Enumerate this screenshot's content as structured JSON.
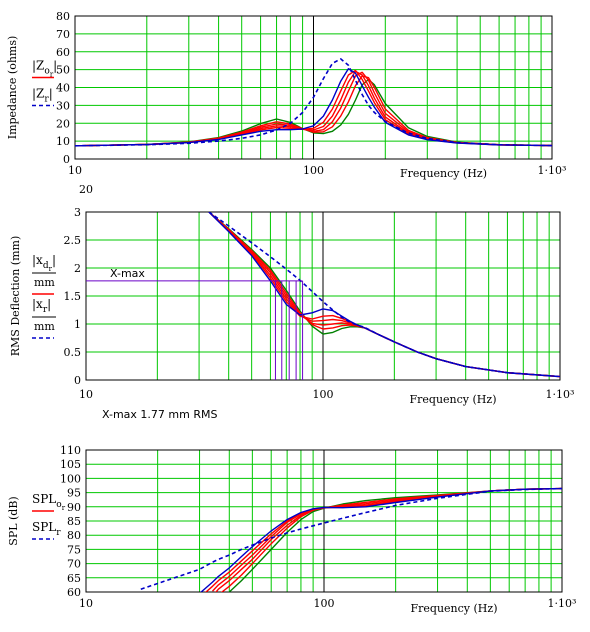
{
  "colors": {
    "grid": "#00c800",
    "frame": "#000000",
    "series_red": "#ff0000",
    "series_green": "#008000",
    "series_blue": "#0000c8",
    "marker": "#6a00c8"
  },
  "chart_data": [
    {
      "type": "line",
      "xscale": "log",
      "xlim": [
        10,
        1000
      ],
      "ylim": [
        0,
        80
      ],
      "grid": true,
      "xlabel": "Frequency (Hz)",
      "ylabel": "Impedance (ohms)",
      "x_ticks": [
        "10",
        "100",
        "1·10³"
      ],
      "y_ticks": [
        "0",
        "10",
        "20",
        "30",
        "40",
        "50",
        "60",
        "70",
        "80"
      ],
      "legend": [
        {
          "text": "|Z",
          "sub": "o",
          "sub2": "r",
          "tail": "|",
          "style": "solid-red"
        },
        {
          "text": "|Z",
          "sub": "r",
          "tail": "|",
          "style": "dashed-blue"
        }
      ],
      "x": [
        10,
        20,
        30,
        40,
        50,
        60,
        70,
        80,
        90,
        100,
        110,
        120,
        130,
        140,
        150,
        160,
        170,
        180,
        200,
        250,
        300,
        400,
        600,
        1000
      ],
      "series": [
        {
          "color": "green",
          "style": "solid",
          "values": [
            7.4,
            8.1,
            9.5,
            12.0,
            15.6,
            19.8,
            22.4,
            20.5,
            17.0,
            14.6,
            14.2,
            15.5,
            19.0,
            25.0,
            33.0,
            41.5,
            44.5,
            41.5,
            31.0,
            17.5,
            12.6,
            9.4,
            8.0,
            7.5
          ]
        },
        {
          "color": "red",
          "style": "solid",
          "values": [
            7.4,
            8.1,
            9.4,
            11.7,
            15.0,
            18.6,
            20.8,
            19.6,
            17.0,
            15.0,
            15.2,
            18.0,
            24.0,
            32.0,
            41.0,
            46.5,
            45.5,
            40.0,
            28.0,
            16.0,
            12.0,
            9.3,
            8.0,
            7.5
          ]
        },
        {
          "color": "red",
          "style": "solid",
          "values": [
            7.4,
            8.1,
            9.4,
            11.5,
            14.6,
            17.8,
            19.6,
            18.8,
            16.8,
            15.5,
            16.4,
            20.8,
            28.5,
            38.0,
            46.5,
            48.5,
            44.0,
            37.0,
            25.5,
            15.2,
            11.6,
            9.2,
            8.0,
            7.5
          ]
        },
        {
          "color": "red",
          "style": "solid",
          "values": [
            7.4,
            8.1,
            9.3,
            11.3,
            14.2,
            17.0,
            18.6,
            18.0,
            16.6,
            16.2,
            18.2,
            24.0,
            33.0,
            43.0,
            49.0,
            47.0,
            41.0,
            34.0,
            23.5,
            14.5,
            11.3,
            9.1,
            7.9,
            7.5
          ]
        },
        {
          "color": "red",
          "style": "solid",
          "values": [
            7.4,
            8.1,
            9.2,
            11.1,
            13.9,
            16.3,
            17.6,
            17.2,
            16.6,
            17.2,
            20.6,
            28.0,
            38.0,
            47.0,
            49.5,
            44.5,
            38.0,
            31.5,
            22.0,
            14.0,
            11.0,
            9.0,
            7.9,
            7.5
          ]
        },
        {
          "color": "blue",
          "style": "solid",
          "values": [
            7.4,
            8.1,
            9.2,
            10.9,
            13.5,
            15.5,
            16.4,
            16.4,
            16.8,
            18.6,
            24.0,
            33.0,
            43.5,
            50.5,
            48.0,
            41.0,
            34.5,
            29.0,
            20.5,
            13.5,
            10.8,
            8.9,
            7.9,
            7.5
          ]
        },
        {
          "color": "blue",
          "style": "dashed",
          "values": [
            7.4,
            8.0,
            8.8,
            10.0,
            11.6,
            13.5,
            16.2,
            20.0,
            26.0,
            34.5,
            45.0,
            53.5,
            56.0,
            52.5,
            44.0,
            36.0,
            30.0,
            26.0,
            21.0,
            14.5,
            11.5,
            9.2,
            8.0,
            7.5
          ]
        }
      ]
    },
    {
      "type": "line",
      "xscale": "log",
      "xlim": [
        10,
        1000
      ],
      "ylim": [
        0,
        3
      ],
      "grid": true,
      "xlabel": "Frequency (Hz)",
      "ylabel": "RMS Deflection (mm)",
      "x_ticks": [
        "10",
        "100",
        "1·10³"
      ],
      "y_ticks": [
        "0",
        "0.5",
        "1",
        "1.5",
        "2",
        "2.5",
        "3"
      ],
      "top_label": "20",
      "legend": [
        {
          "text": "|x",
          "sub": "d",
          "sub2": "r",
          "tail": "|",
          "denominator": "mm",
          "style": "solid-red"
        },
        {
          "text": "|x",
          "sub": "r",
          "tail": "|",
          "denominator": "mm",
          "style": "dashed-blue"
        }
      ],
      "annotations": {
        "xmax_label": "X-max",
        "xmax_value": 1.77,
        "xmax_crossings": [
          63,
          67,
          72,
          77,
          82
        ],
        "caption": "X-max 1.77 mm  RMS"
      },
      "x": [
        33,
        40,
        50,
        60,
        70,
        80,
        90,
        100,
        110,
        120,
        130,
        140,
        150,
        170,
        200,
        250,
        300,
        400,
        600,
        1000
      ],
      "series": [
        {
          "color": "green",
          "style": "solid",
          "values": [
            3.0,
            2.7,
            2.33,
            2.0,
            1.6,
            1.23,
            0.96,
            0.82,
            0.85,
            0.92,
            0.95,
            0.95,
            0.93,
            0.82,
            0.68,
            0.5,
            0.38,
            0.24,
            0.13,
            0.06
          ]
        },
        {
          "color": "red",
          "style": "solid",
          "values": [
            3.0,
            2.69,
            2.31,
            1.96,
            1.55,
            1.2,
            0.99,
            0.91,
            0.93,
            0.97,
            0.98,
            0.96,
            0.93,
            0.82,
            0.68,
            0.5,
            0.38,
            0.24,
            0.13,
            0.06
          ]
        },
        {
          "color": "red",
          "style": "solid",
          "values": [
            3.0,
            2.68,
            2.29,
            1.92,
            1.5,
            1.17,
            1.01,
            0.98,
            1.0,
            1.02,
            1.0,
            0.97,
            0.93,
            0.82,
            0.68,
            0.5,
            0.38,
            0.24,
            0.13,
            0.06
          ]
        },
        {
          "color": "red",
          "style": "solid",
          "values": [
            3.0,
            2.67,
            2.27,
            1.87,
            1.45,
            1.15,
            1.05,
            1.06,
            1.08,
            1.06,
            1.02,
            0.98,
            0.93,
            0.82,
            0.68,
            0.5,
            0.38,
            0.24,
            0.13,
            0.06
          ]
        },
        {
          "color": "red",
          "style": "solid",
          "values": [
            3.0,
            2.66,
            2.25,
            1.82,
            1.4,
            1.14,
            1.09,
            1.14,
            1.15,
            1.1,
            1.04,
            0.98,
            0.93,
            0.82,
            0.68,
            0.5,
            0.38,
            0.24,
            0.13,
            0.06
          ]
        },
        {
          "color": "blue",
          "style": "solid",
          "values": [
            3.0,
            2.65,
            2.22,
            1.77,
            1.35,
            1.16,
            1.2,
            1.27,
            1.24,
            1.14,
            1.05,
            0.98,
            0.93,
            0.82,
            0.68,
            0.5,
            0.38,
            0.24,
            0.13,
            0.06
          ]
        },
        {
          "color": "blue",
          "style": "dashed",
          "values": [
            3.0,
            2.75,
            2.45,
            2.2,
            1.98,
            1.78,
            1.58,
            1.4,
            1.25,
            1.12,
            1.03,
            0.98,
            0.94,
            0.82,
            0.68,
            0.5,
            0.38,
            0.24,
            0.13,
            0.06
          ]
        }
      ]
    },
    {
      "type": "line",
      "xscale": "log",
      "xlim": [
        10,
        1000
      ],
      "ylim": [
        60,
        110
      ],
      "grid": true,
      "xlabel": "Frequency (Hz)",
      "ylabel": "SPL (dB)",
      "x_ticks": [
        "10",
        "100",
        "1·10³"
      ],
      "y_ticks": [
        "60",
        "65",
        "70",
        "75",
        "80",
        "85",
        "90",
        "95",
        "100",
        "105",
        "110"
      ],
      "legend": [
        {
          "text": "SPL",
          "sub": "o",
          "sub2": "r",
          "style": "solid-red"
        },
        {
          "text": "SPL",
          "sub": "r",
          "style": "dashed-blue"
        }
      ],
      "x": [
        17,
        20,
        30,
        34,
        36,
        40,
        45,
        50,
        60,
        70,
        80,
        90,
        100,
        120,
        150,
        200,
        300,
        500,
        700,
        1000
      ],
      "series": [
        {
          "color": "green",
          "style": "solid",
          "values": [
            null,
            null,
            null,
            null,
            57.0,
            60.0,
            64.0,
            68.0,
            75.0,
            81.0,
            85.5,
            88.3,
            89.5,
            91.0,
            92.2,
            93.2,
            94.2,
            95.6,
            96.2,
            96.4
          ]
        },
        {
          "color": "red",
          "style": "solid",
          "values": [
            null,
            null,
            null,
            null,
            59.0,
            62.0,
            66.0,
            70.0,
            77.0,
            82.5,
            86.5,
            88.8,
            89.6,
            90.6,
            91.6,
            92.8,
            94.0,
            95.6,
            96.2,
            96.4
          ]
        },
        {
          "color": "red",
          "style": "solid",
          "values": [
            null,
            null,
            null,
            58.5,
            61.0,
            64.0,
            68.0,
            71.5,
            78.5,
            83.5,
            87.0,
            89.0,
            89.7,
            90.3,
            91.1,
            92.4,
            93.8,
            95.6,
            96.2,
            96.4
          ]
        },
        {
          "color": "red",
          "style": "solid",
          "values": [
            null,
            null,
            null,
            60.3,
            62.5,
            65.5,
            69.5,
            73.0,
            79.5,
            84.5,
            87.5,
            89.1,
            89.7,
            90.0,
            90.6,
            92.0,
            93.6,
            95.6,
            96.2,
            96.4
          ]
        },
        {
          "color": "red",
          "style": "solid",
          "values": [
            null,
            null,
            58.0,
            62.0,
            64.0,
            67.0,
            71.0,
            74.5,
            80.5,
            85.0,
            87.8,
            89.2,
            89.7,
            89.8,
            90.2,
            91.7,
            93.5,
            95.6,
            96.2,
            96.4
          ]
        },
        {
          "color": "blue",
          "style": "solid",
          "values": [
            null,
            null,
            59.5,
            63.5,
            65.5,
            68.5,
            72.5,
            76.0,
            81.5,
            85.5,
            88.0,
            89.3,
            89.8,
            89.7,
            90.0,
            91.5,
            93.4,
            95.6,
            96.2,
            96.4
          ]
        },
        {
          "color": "blue",
          "style": "dashed",
          "values": [
            61.0,
            63.0,
            68.0,
            70.5,
            71.5,
            73.0,
            75.0,
            76.5,
            79.0,
            80.8,
            82.2,
            83.3,
            84.3,
            86.0,
            88.0,
            90.5,
            93.0,
            95.5,
            96.1,
            96.4
          ]
        }
      ]
    }
  ]
}
